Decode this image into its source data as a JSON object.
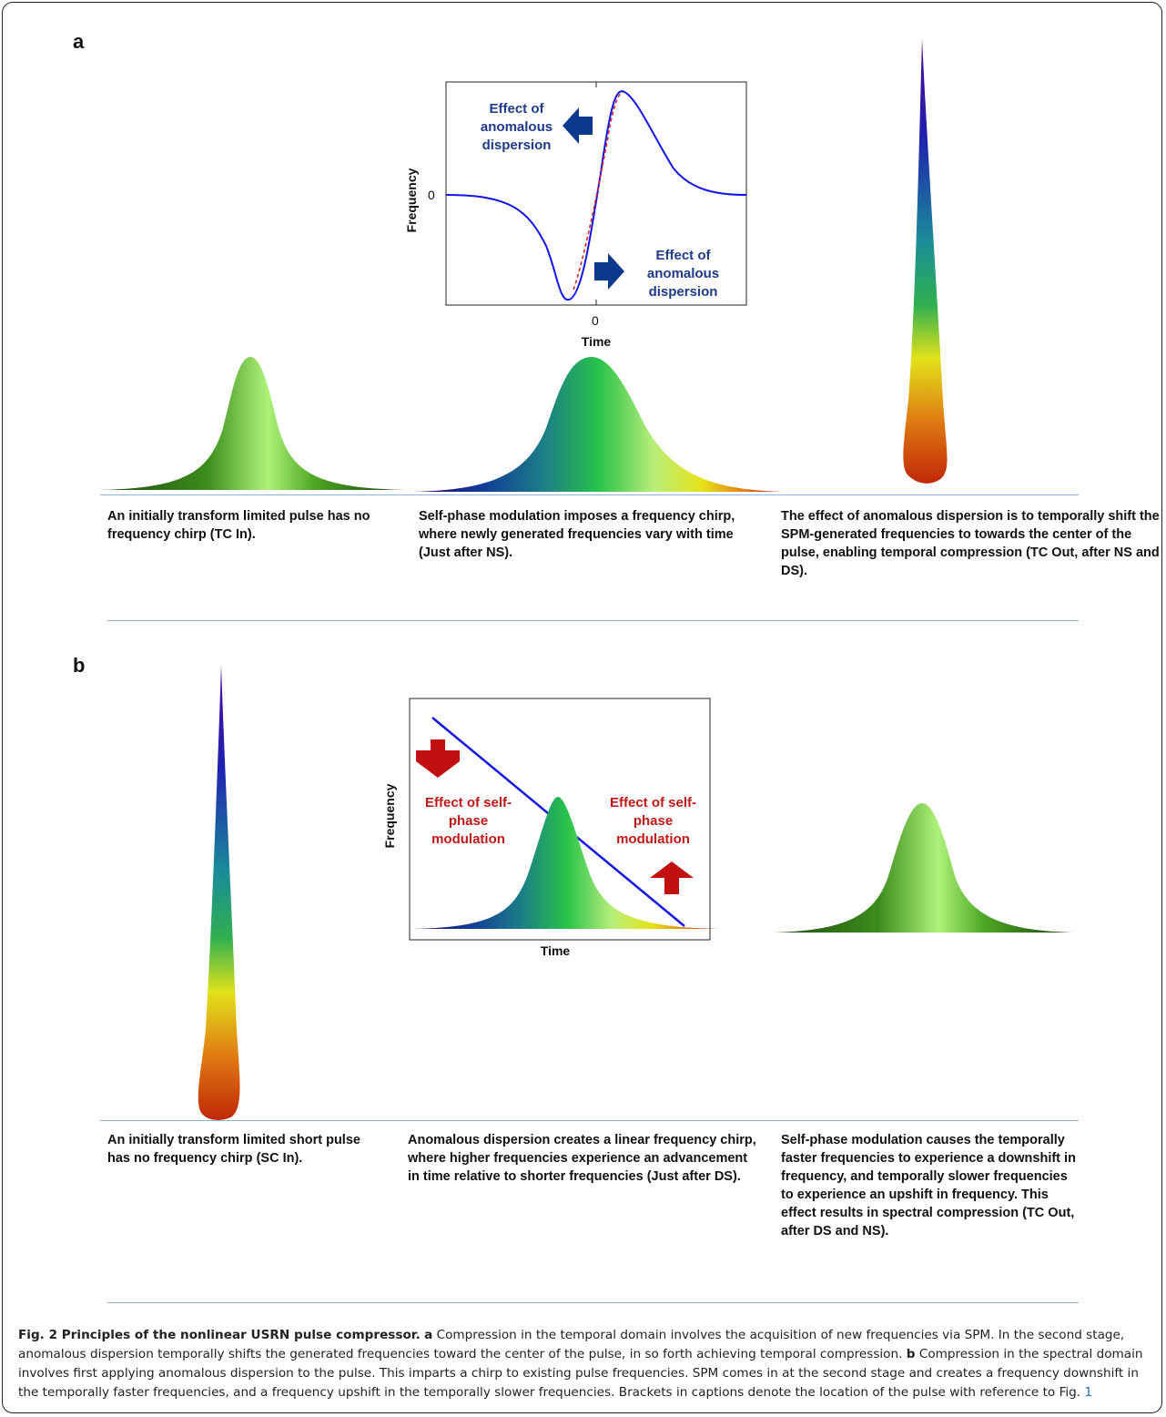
{
  "panel_a": {
    "label": "a",
    "plot": {
      "ylabel": "Frequency",
      "xlabel": "Time",
      "x_tick": "0",
      "y_tick": "0",
      "left_annotation": [
        "Effect of",
        "anomalous",
        "dispersion"
      ],
      "right_annotation": [
        "Effect of",
        "anomalous",
        "dispersion"
      ],
      "annotation_color": "#1f3b8a",
      "arrow_color": "#0b3a8c",
      "curve_color": "#1414e6",
      "overlay_color": "#d62828"
    },
    "captions": [
      "An initially transform limited pulse has no frequency chirp (TC In).",
      "Self-phase modulation imposes a frequency chirp, where newly generated frequencies vary with time (Just after NS).",
      "The effect of anomalous dispersion is to temporally shift the SPM-generated frequencies to towards the center of the pulse, enabling temporal compression (TC Out, after NS and DS)."
    ]
  },
  "panel_b": {
    "label": "b",
    "plot": {
      "ylabel": "Frequency",
      "xlabel": "Time",
      "left_annotation": [
        "Effect of self-",
        "phase",
        "modulation"
      ],
      "right_annotation": [
        "Effect of self-",
        "phase",
        "modulation"
      ],
      "annotation_color": "#c01818",
      "arrow_color": "#c01010",
      "curve_color": "#1414e6"
    },
    "captions": [
      "An initially transform limited short pulse has no frequency chirp (SC In).",
      "Anomalous dispersion creates a linear frequency chirp, where higher frequencies experience an advancement in time relative to shorter frequencies (Just after DS).",
      "Self-phase modulation causes the temporally faster frequencies to experience a downshift in frequency, and temporally slower frequencies to experience an upshift in frequency. This effect results in spectral compression (TC Out, after DS and NS)."
    ]
  },
  "figure_caption": {
    "title": "Fig. 2 Principles of the nonlinear USRN pulse compressor.",
    "a_label": "a",
    "a_text": "Compression in the temporal domain involves the acquisition of new frequencies via SPM. In the second stage, anomalous dispersion temporally shifts the generated frequencies toward the center of the pulse, in so forth achieving temporal compression.",
    "b_label": "b",
    "b_text": "Compression in the spectral domain involves first applying anomalous dispersion to the pulse. This imparts a chirp to existing pulse frequencies. SPM comes in at the second stage and creates a frequency downshift in the temporally faster frequencies, and a frequency upshift in the temporally slower frequencies. Brackets in captions denote the location of the pulse with reference to Fig.",
    "fig_ref": "1"
  }
}
